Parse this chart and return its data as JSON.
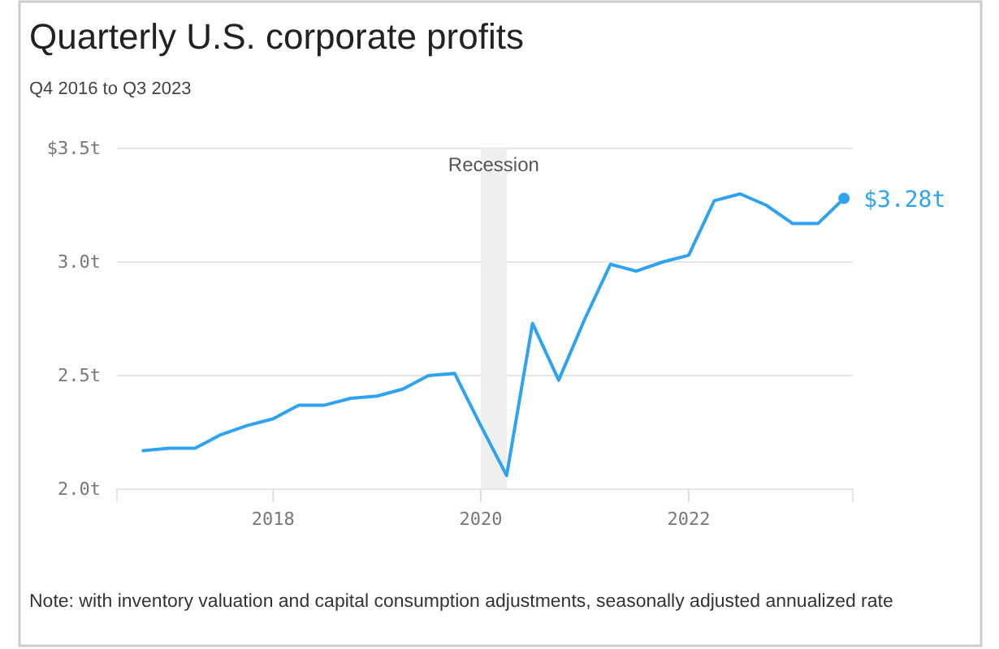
{
  "chart_data": {
    "type": "line",
    "title": "Quarterly U.S. corporate profits",
    "subtitle": "Q4 2016 to Q3 2023",
    "x": [
      "2016-10",
      "2017-01",
      "2017-04",
      "2017-07",
      "2017-10",
      "2018-01",
      "2018-04",
      "2018-07",
      "2018-10",
      "2019-01",
      "2019-04",
      "2019-07",
      "2019-10",
      "2020-01",
      "2020-04",
      "2020-07",
      "2020-10",
      "2021-01",
      "2021-04",
      "2021-07",
      "2021-10",
      "2022-01",
      "2022-04",
      "2022-07",
      "2022-10",
      "2023-01",
      "2023-04",
      "2023-07"
    ],
    "series": [
      {
        "color": "#2ea3f2",
        "values": [
          2.17,
          2.18,
          2.18,
          2.24,
          2.28,
          2.31,
          2.37,
          2.37,
          2.4,
          2.41,
          2.44,
          2.5,
          2.51,
          2.28,
          2.06,
          2.73,
          2.48,
          2.75,
          2.99,
          2.96,
          3.0,
          3.03,
          3.27,
          3.3,
          3.25,
          3.17,
          3.17,
          3.28
        ]
      }
    ],
    "xlim": [
      "2016-07",
      "2023-08"
    ],
    "xticks": [
      {
        "value": "2018",
        "label": "2018"
      },
      {
        "value": "2020",
        "label": "2020"
      },
      {
        "value": "2022",
        "label": "2022"
      }
    ],
    "ylim": [
      2.0,
      3.5
    ],
    "yticks": [
      {
        "value": 2.0,
        "label": "2.0t"
      },
      {
        "value": 2.5,
        "label": "2.5t"
      },
      {
        "value": 3.0,
        "label": "3.0t"
      },
      {
        "value": 3.5,
        "label": "$3.5t"
      }
    ],
    "grid": "y",
    "line_style": "solid",
    "bands": [
      {
        "axis": "x",
        "from": "2020-01",
        "to": "2020-04",
        "label": "Recession",
        "color": "#efefef"
      }
    ],
    "annotations": [
      {
        "text": "$3.28t",
        "x": "2023-07",
        "y": 3.28
      },
      "Note: with inventory valuation and capital consumption adjustments, seasonally adjusted annualized rate"
    ]
  }
}
